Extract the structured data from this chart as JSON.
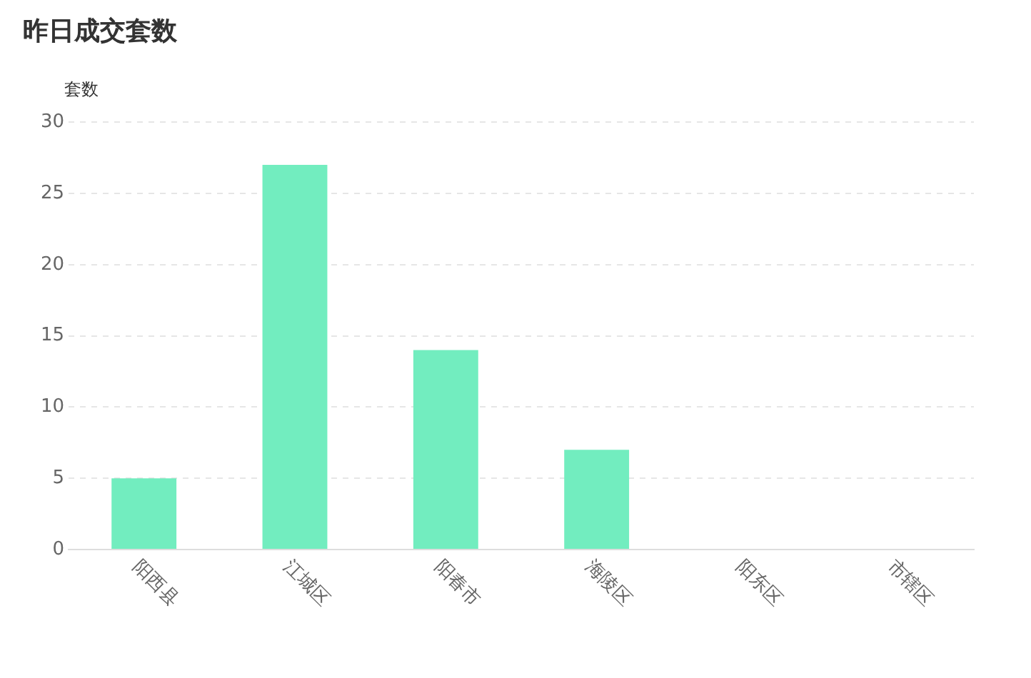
{
  "chart_data": {
    "type": "bar",
    "title": "昨日成交套数",
    "ylabel": "套数",
    "categories": [
      "阳西县",
      "江城区",
      "阳春市",
      "海陵区",
      "阳东区",
      "市辖区"
    ],
    "values": [
      5,
      27,
      14,
      7,
      0,
      0
    ],
    "color": "#72edbf",
    "ylim": [
      0,
      30
    ],
    "yticks": [
      0,
      5,
      10,
      15,
      20,
      25,
      30
    ],
    "grid": "y"
  }
}
